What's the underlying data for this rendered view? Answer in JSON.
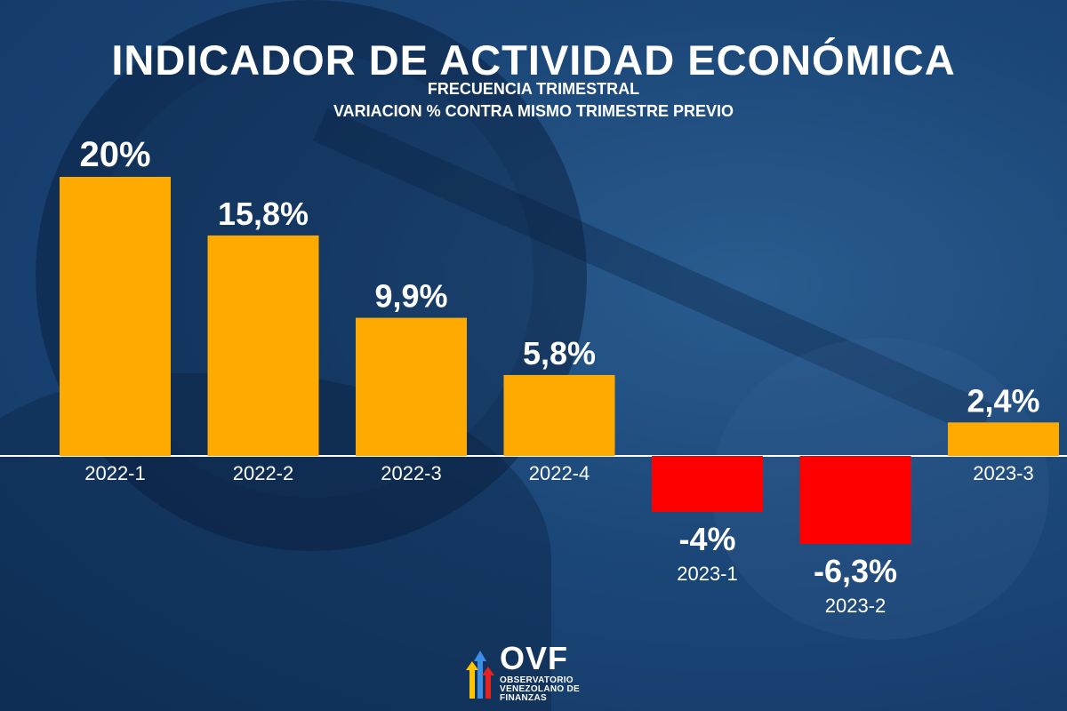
{
  "title": "INDICADOR DE ACTIVIDAD ECONÓMICA",
  "subtitle_1": "FRECUENCIA TRIMESTRAL",
  "subtitle_2": "VARIACION % CONTRA MISMO TRIMESTRE PREVIO",
  "logo": {
    "name": "OVF",
    "line_1": "OBSERVATORIO",
    "line_2": "VENEZOLANO DE",
    "line_3": "FINANZAS"
  },
  "colors": {
    "positive": "#FFAA00",
    "negative": "#FF0000",
    "baseline": "#FFFFFF",
    "background": "#1B4778",
    "text": "#FFFFFF"
  },
  "chart_data": {
    "type": "bar",
    "categories": [
      "2022-1",
      "2022-2",
      "2022-3",
      "2022-4",
      "2023-1",
      "2023-2",
      "2023-3"
    ],
    "values": [
      20,
      15.8,
      9.9,
      5.8,
      -4,
      -6.3,
      2.4
    ],
    "data_labels": [
      "20%",
      "15,8%",
      "9,9%",
      "5,8%",
      "-4%",
      "-6,3%",
      "2,4%"
    ],
    "ylim": [
      -6.3,
      20
    ],
    "grid": false,
    "legend": "none"
  }
}
